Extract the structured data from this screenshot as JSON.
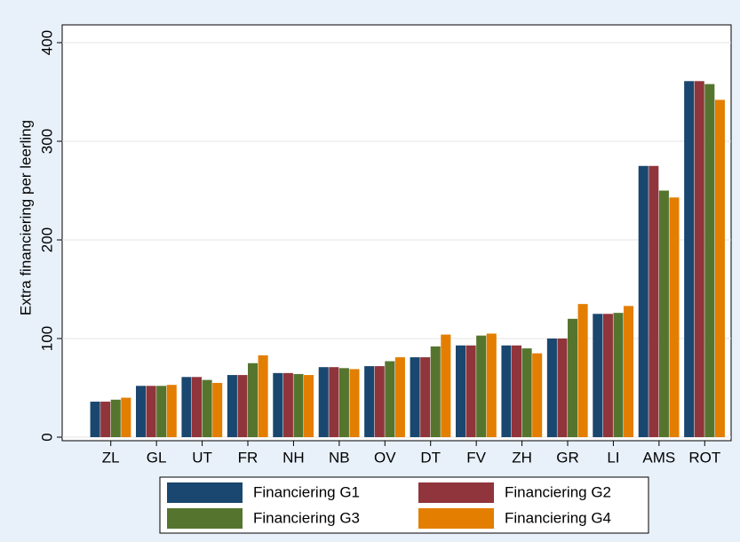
{
  "chart_data": {
    "type": "bar",
    "y_label": "Extra financiering per leerling",
    "categories": [
      "ZL",
      "GL",
      "UT",
      "FR",
      "NH",
      "NB",
      "OV",
      "DT",
      "FV",
      "ZH",
      "GR",
      "LI",
      "AMS",
      "ROT"
    ],
    "series": [
      {
        "name": "Financiering G1",
        "color": "#1a476f",
        "values": [
          36,
          52,
          61,
          63,
          65,
          71,
          72,
          81,
          93,
          93,
          100,
          125,
          275,
          361
        ]
      },
      {
        "name": "Financiering G2",
        "color": "#90353b",
        "values": [
          36,
          52,
          61,
          63,
          65,
          71,
          72,
          81,
          93,
          93,
          100,
          125,
          275,
          361
        ]
      },
      {
        "name": "Financiering G3",
        "color": "#55752f",
        "values": [
          38,
          52,
          58,
          75,
          64,
          70,
          77,
          92,
          103,
          90,
          120,
          126,
          250,
          358
        ]
      },
      {
        "name": "Financiering G4",
        "color": "#e37e00",
        "values": [
          40,
          53,
          55,
          83,
          63,
          69,
          81,
          104,
          105,
          85,
          135,
          133,
          243,
          342
        ]
      }
    ],
    "ylim": [
      0,
      400
    ],
    "yticks": [
      0,
      100,
      200,
      300,
      400
    ],
    "grid": true
  }
}
